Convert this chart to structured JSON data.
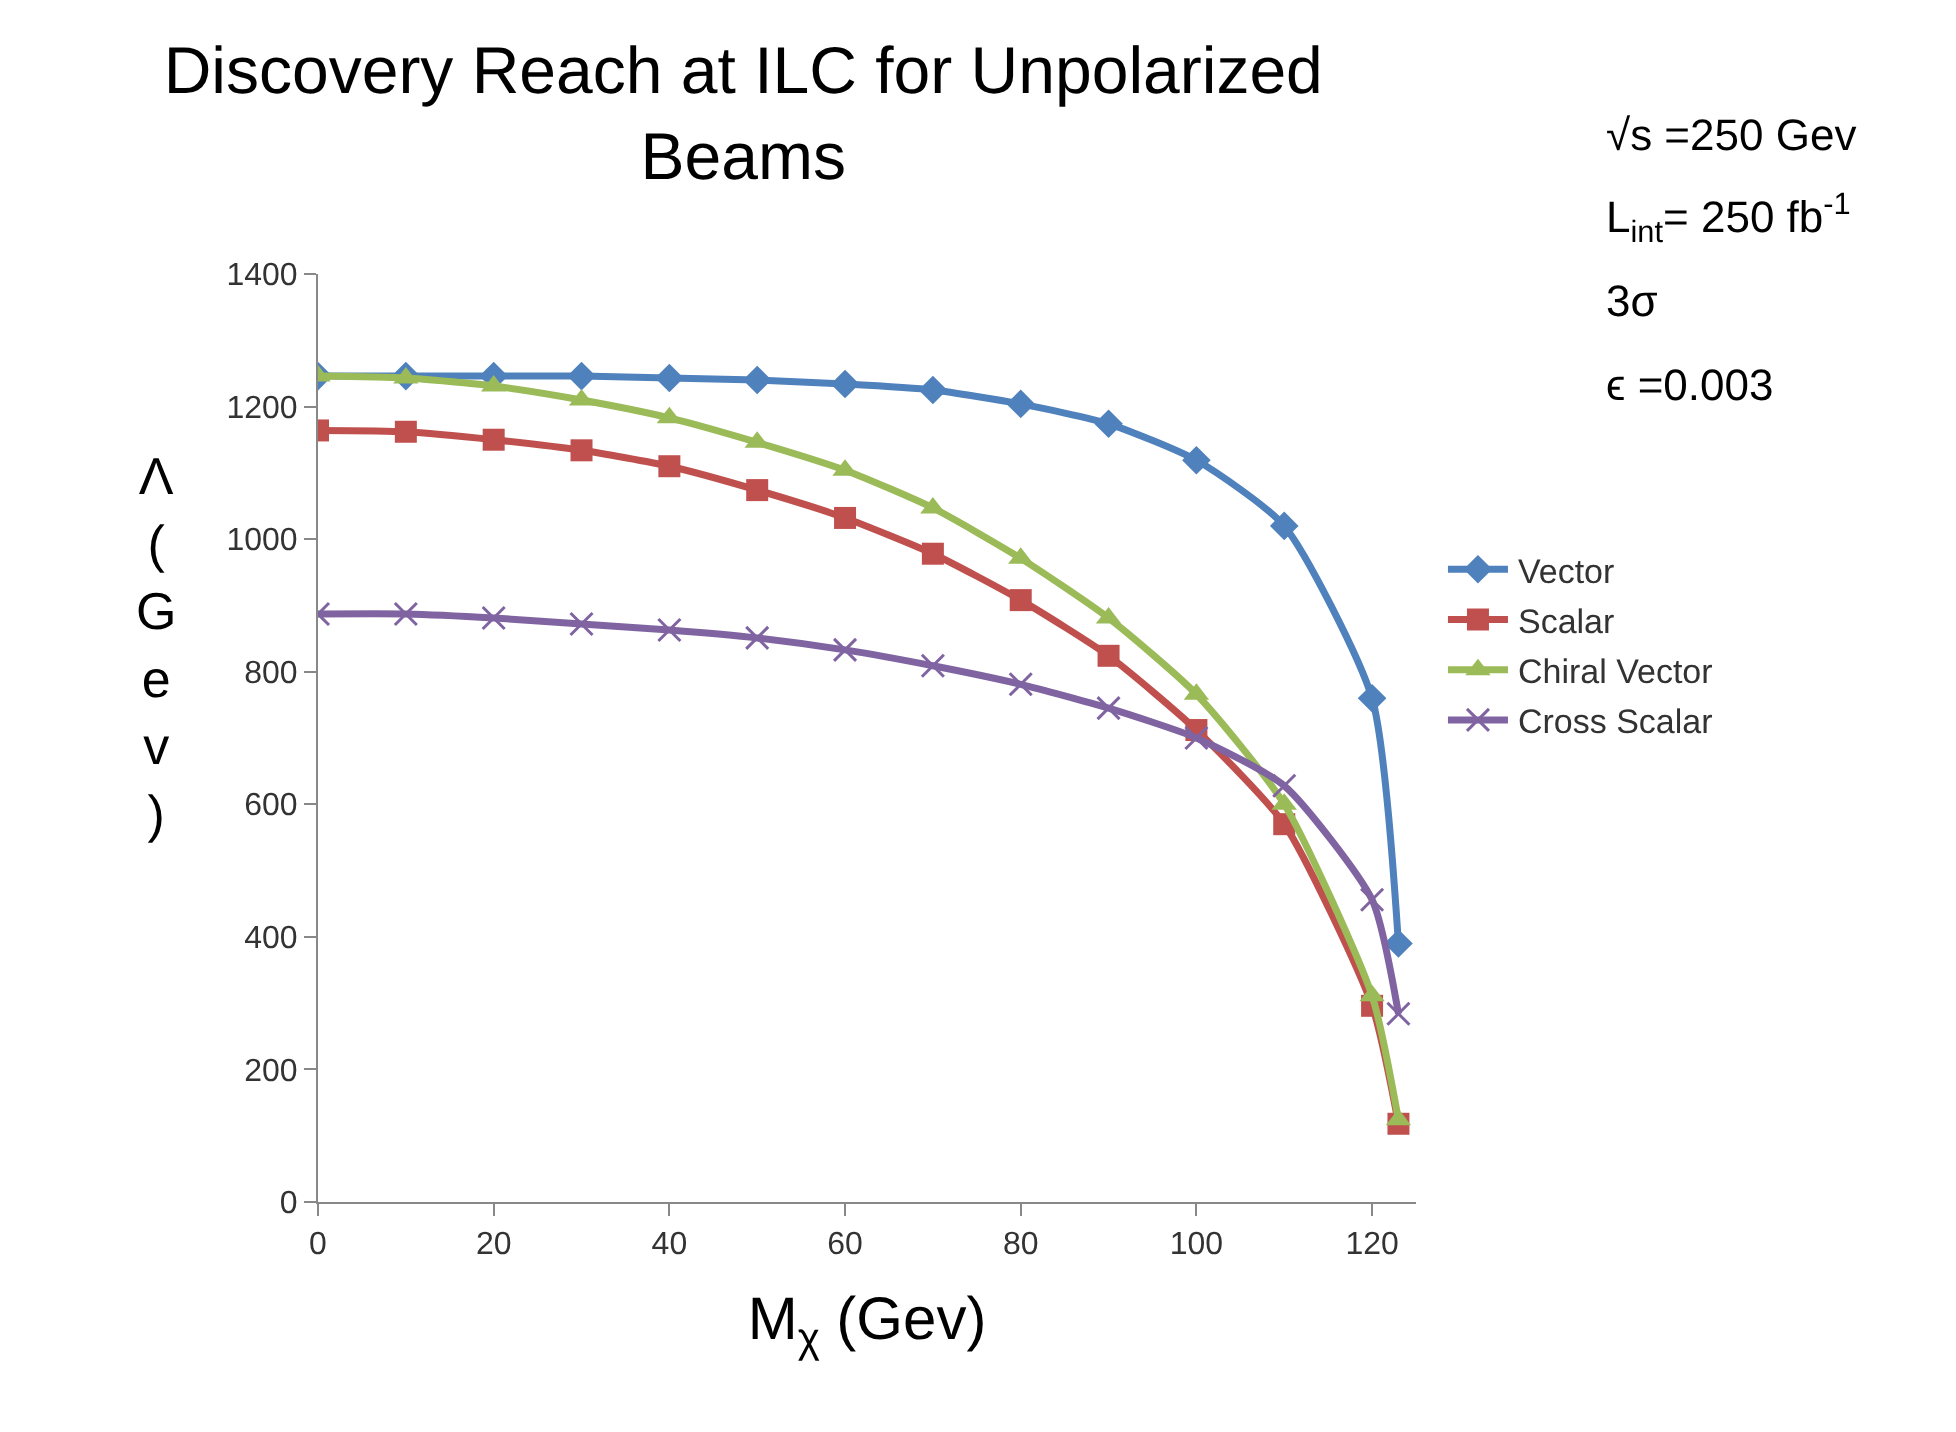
{
  "chart_data": {
    "type": "line",
    "title": "Discovery Reach at ILC for Unpolarized Beams",
    "xlabel": "M$_{χ}$ (Gev)",
    "ylabel": "Λ (Gev)",
    "x": [
      0,
      10,
      20,
      30,
      40,
      50,
      60,
      70,
      80,
      90,
      100,
      110,
      120,
      123
    ],
    "series": [
      {
        "name": "Vector",
        "color": "#4f81bd",
        "marker": "diamond",
        "values": [
          1246,
          1246,
          1246,
          1246,
          1243,
          1240,
          1234,
          1225,
          1204,
          1174,
          1119,
          1020,
          760,
          390
        ]
      },
      {
        "name": "Scalar",
        "color": "#c0504d",
        "marker": "square",
        "values": [
          1164,
          1162,
          1150,
          1134,
          1110,
          1074,
          1032,
          978,
          908,
          824,
          712,
          570,
          296,
          118
        ]
      },
      {
        "name": "Chiral Vector",
        "color": "#9bbb59",
        "marker": "triangle",
        "values": [
          1246,
          1243,
          1231,
          1210,
          1183,
          1146,
          1104,
          1047,
          971,
          881,
          766,
          600,
          311,
          124
        ]
      },
      {
        "name": "Cross Scalar",
        "color": "#8064a2",
        "marker": "cross",
        "values": [
          887,
          887,
          881,
          872,
          863,
          851,
          833,
          809,
          781,
          745,
          700,
          628,
          456,
          284
        ]
      }
    ],
    "xlim": [
      0,
      125
    ],
    "xticks": [
      0,
      20,
      40,
      60,
      80,
      100,
      120
    ],
    "ylim": [
      0,
      1400
    ],
    "yticks": [
      0,
      200,
      400,
      600,
      800,
      1000,
      1200,
      1400
    ],
    "grid": false,
    "legend": "right",
    "line_style": "solid",
    "annotations": [
      "√s =250 Gev",
      "L$_{int}$= 250 fb$^{-1}$",
      "3σ",
      "ϵ =0.003"
    ]
  }
}
